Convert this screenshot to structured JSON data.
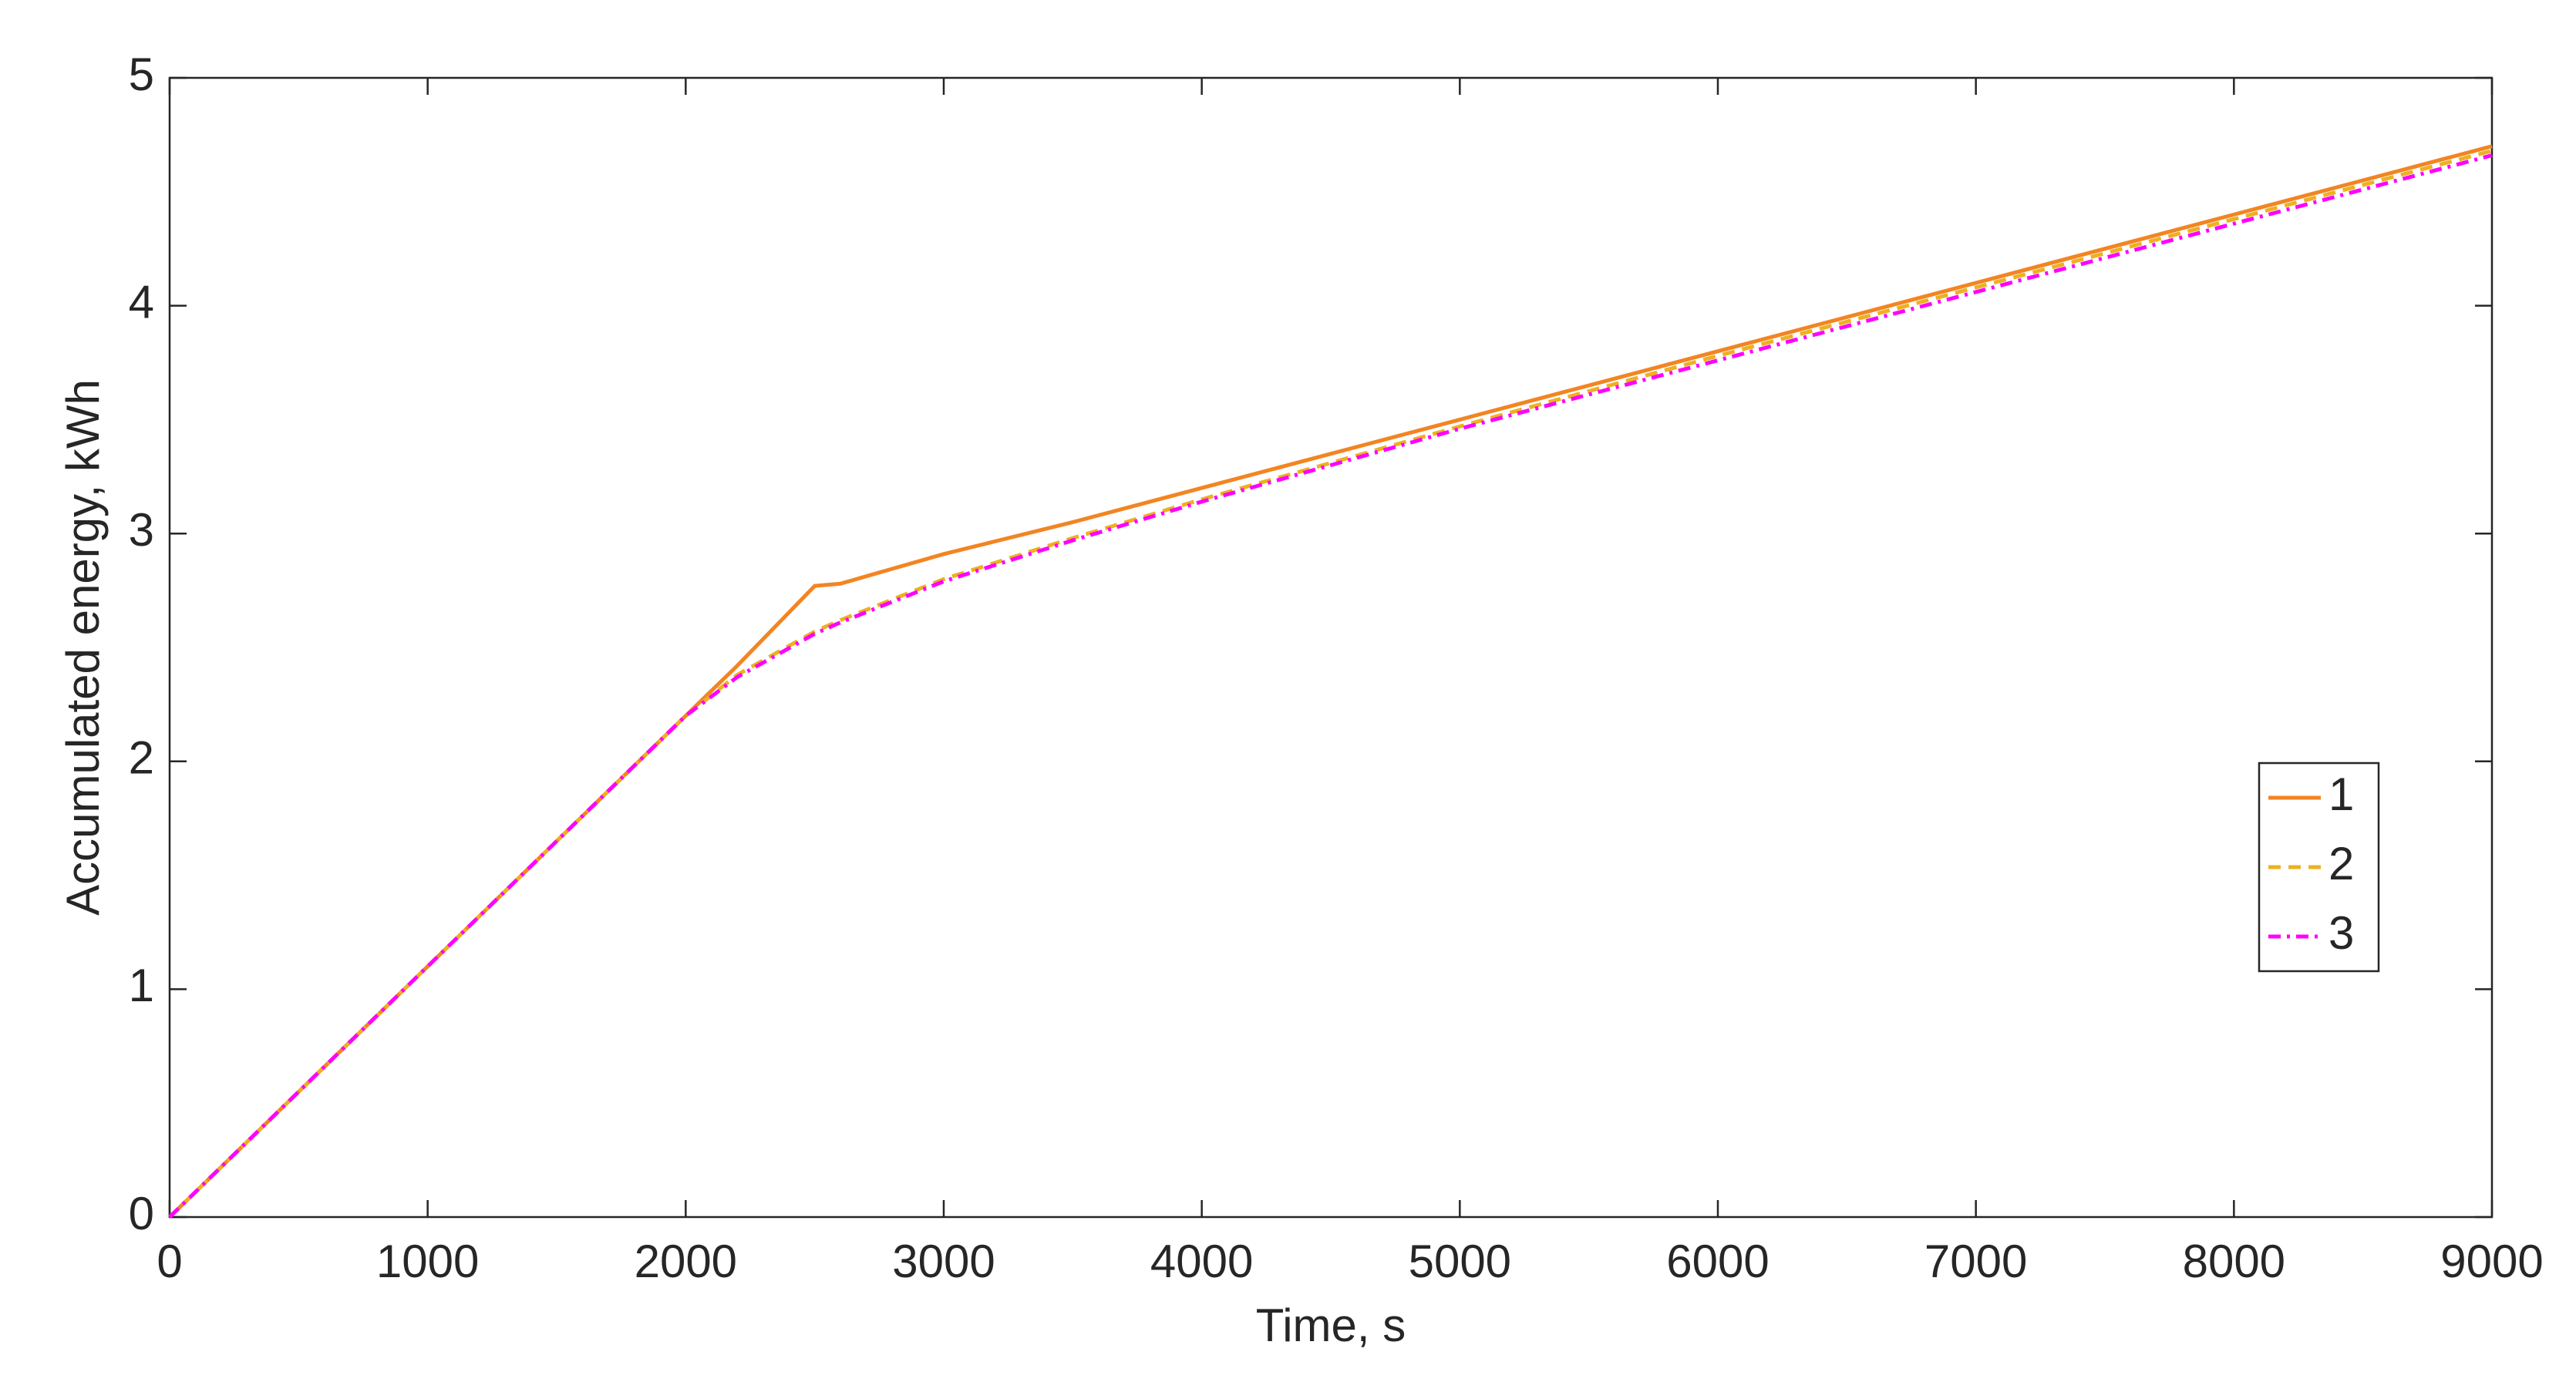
{
  "chart_data": {
    "type": "line",
    "xlabel": "Time, s",
    "ylabel": "Accumulated energy, kWh",
    "x": [
      0,
      1000,
      2000,
      2200,
      2500,
      2600,
      3000,
      3500,
      4000,
      5000,
      6000,
      7000,
      8000,
      9000
    ],
    "series": [
      {
        "name": "1",
        "color": "#f28522",
        "dash": "solid",
        "values": [
          0,
          1.1,
          2.2,
          2.42,
          2.77,
          2.78,
          2.91,
          3.05,
          3.2,
          3.5,
          3.8,
          4.1,
          4.4,
          4.7
        ]
      },
      {
        "name": "2",
        "color": "#edb120",
        "dash": "dashed",
        "values": [
          0,
          1.1,
          2.2,
          2.38,
          2.57,
          2.62,
          2.8,
          2.98,
          3.15,
          3.47,
          3.78,
          4.08,
          4.38,
          4.68
        ]
      },
      {
        "name": "3",
        "color": "#ff00ff",
        "dash": "dashdot",
        "values": [
          0,
          1.1,
          2.2,
          2.37,
          2.56,
          2.61,
          2.79,
          2.97,
          3.14,
          3.46,
          3.76,
          4.06,
          4.36,
          4.66
        ]
      }
    ],
    "xlim": [
      0,
      9000
    ],
    "xticks": [
      0,
      1000,
      2000,
      3000,
      4000,
      5000,
      6000,
      7000,
      8000,
      9000
    ],
    "ylim": [
      0,
      5
    ],
    "yticks": [
      0,
      1,
      2,
      3,
      4,
      5
    ],
    "grid": false,
    "legend": "right"
  }
}
